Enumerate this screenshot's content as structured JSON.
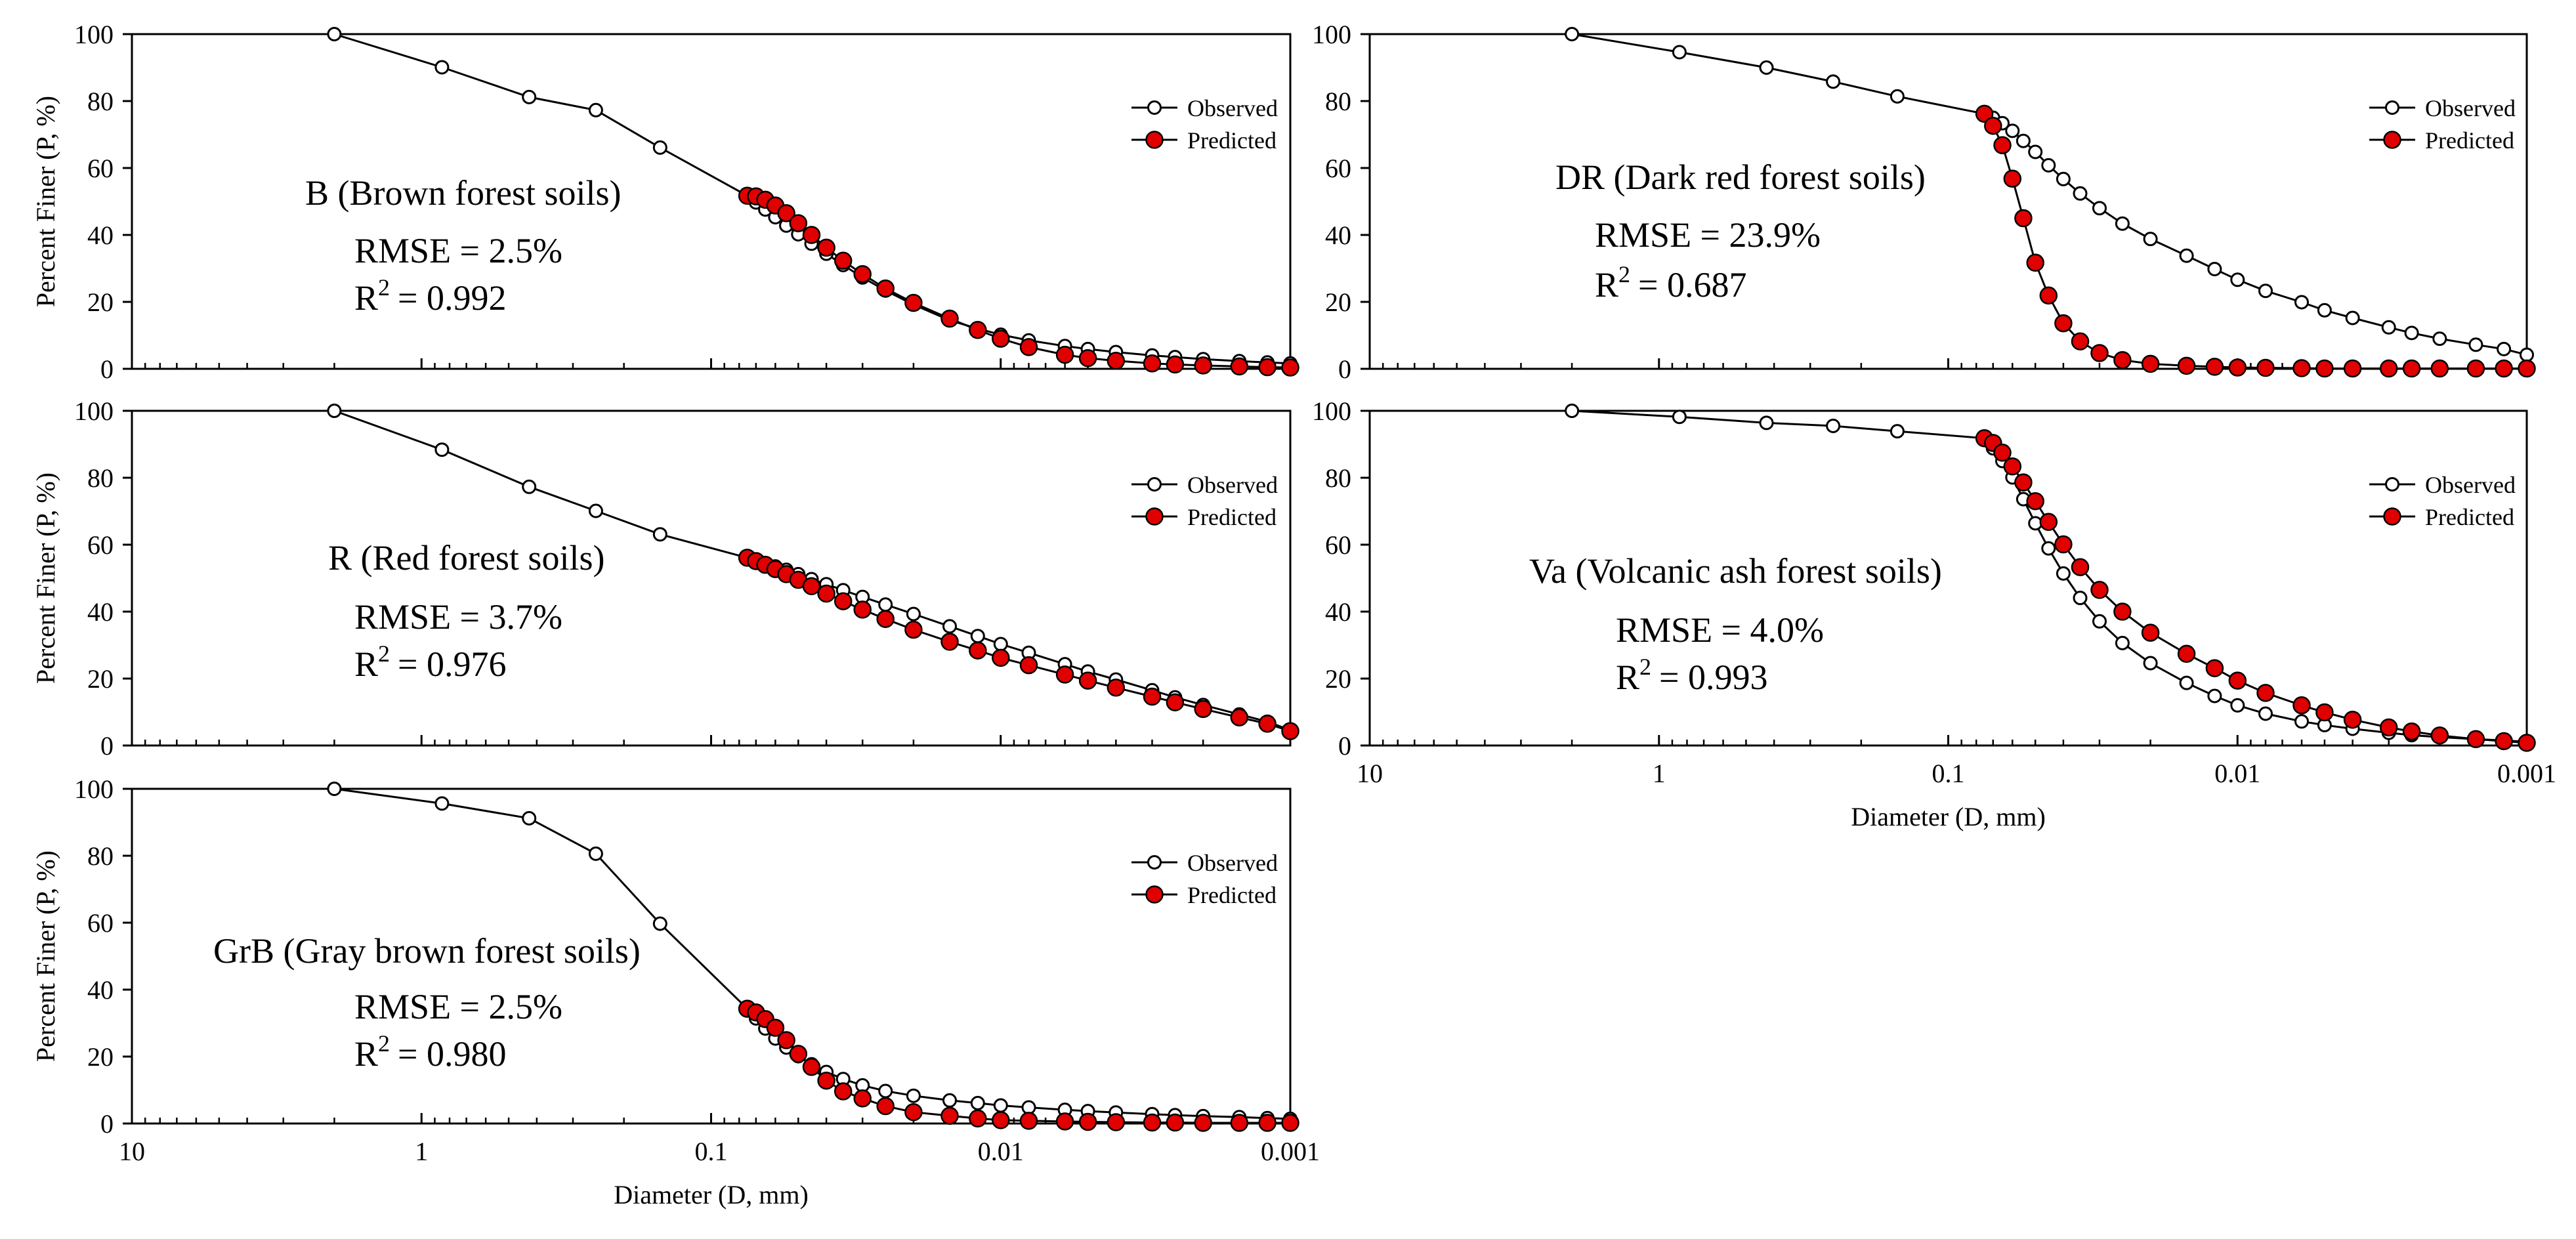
{
  "figure": {
    "ylabel": "Percent Finer (P, %)",
    "xlabel": "Diameter (D, mm)",
    "legend_observed": "Observed",
    "legend_predicted": "Predicted",
    "x_ticks": [
      "10",
      "1",
      "0.1",
      "0.01",
      "0.001"
    ],
    "y_ticks": [
      "0",
      "20",
      "40",
      "60",
      "80",
      "100"
    ]
  },
  "colors": {
    "observed_fill": "#ffffff",
    "predicted_fill": "#e00000",
    "line": "#000000",
    "axis": "#000000"
  },
  "chart_data": [
    {
      "type": "line",
      "panel": "B",
      "title": "B (Brown forest soils)",
      "rmse": "RMSE = 2.5%",
      "r2_label": "R",
      "r2_value": "= 0.992",
      "xlabel": "",
      "ylabel": "Percent Finer (P, %)",
      "x_scale": "log-reversed",
      "xlim": [
        10,
        0.001
      ],
      "ylim": [
        0,
        100
      ],
      "legend": "right",
      "series": [
        {
          "name": "Observed",
          "x": [
            2,
            0.85,
            0.425,
            0.25,
            0.15,
            0.075,
            0.07,
            0.065,
            0.06,
            0.055,
            0.05,
            0.045,
            0.04,
            0.035,
            0.03,
            0.025,
            0.02,
            0.015,
            0.012,
            0.01,
            0.008,
            0.006,
            0.005,
            0.004,
            0.003,
            0.0025,
            0.002,
            0.0015,
            0.0012,
            0.001
          ],
          "y": [
            100,
            90.1,
            81.2,
            77.3,
            66.1,
            51.7,
            49.7,
            47.6,
            45.3,
            42.8,
            40.2,
            37.4,
            34.4,
            31.0,
            27.3,
            23.4,
            19.2,
            14.5,
            12.0,
            10.2,
            8.5,
            6.8,
            5.9,
            5.0,
            4.0,
            3.5,
            2.9,
            2.3,
            1.9,
            1.6
          ]
        },
        {
          "name": "Predicted",
          "x": [
            0.075,
            0.07,
            0.065,
            0.06,
            0.055,
            0.05,
            0.045,
            0.04,
            0.035,
            0.03,
            0.025,
            0.02,
            0.015,
            0.012,
            0.01,
            0.008,
            0.006,
            0.005,
            0.004,
            0.003,
            0.0025,
            0.002,
            0.0015,
            0.0012,
            0.001
          ],
          "y": [
            51.7,
            51.5,
            50.5,
            48.8,
            46.5,
            43.5,
            40.0,
            36.2,
            32.3,
            28.3,
            24.0,
            19.7,
            15.0,
            11.6,
            9.0,
            6.5,
            4.2,
            3.2,
            2.4,
            1.6,
            1.3,
            1.0,
            0.7,
            0.5,
            0.4
          ]
        }
      ]
    },
    {
      "type": "line",
      "panel": "DR",
      "title": "DR (Dark red forest soils)",
      "rmse": "RMSE = 23.9%",
      "r2_label": "R",
      "r2_value": "= 0.687",
      "xlabel": "",
      "ylabel": "",
      "x_scale": "log-reversed",
      "xlim": [
        10,
        0.001
      ],
      "ylim": [
        0,
        100
      ],
      "legend": "right",
      "series": [
        {
          "name": "Observed",
          "x": [
            2,
            0.85,
            0.425,
            0.25,
            0.15,
            0.075,
            0.07,
            0.065,
            0.06,
            0.055,
            0.05,
            0.045,
            0.04,
            0.035,
            0.03,
            0.025,
            0.02,
            0.015,
            0.012,
            0.01,
            0.008,
            0.006,
            0.005,
            0.004,
            0.003,
            0.0025,
            0.002,
            0.0015,
            0.0012,
            0.001
          ],
          "y": [
            100,
            94.6,
            90.0,
            85.8,
            81.4,
            76.2,
            75.0,
            73.4,
            71.1,
            68.1,
            64.8,
            60.8,
            56.7,
            52.4,
            48.0,
            43.4,
            38.8,
            33.8,
            29.8,
            26.6,
            23.3,
            19.9,
            17.5,
            15.2,
            12.4,
            10.7,
            9.0,
            7.2,
            5.9,
            4.2
          ]
        },
        {
          "name": "Predicted",
          "x": [
            0.075,
            0.07,
            0.065,
            0.06,
            0.055,
            0.05,
            0.045,
            0.04,
            0.035,
            0.03,
            0.025,
            0.02,
            0.015,
            0.012,
            0.01,
            0.008,
            0.006,
            0.005,
            0.004,
            0.003,
            0.0025,
            0.002,
            0.0015,
            0.0012,
            0.001
          ],
          "y": [
            76.2,
            72.6,
            66.8,
            56.8,
            45.0,
            31.7,
            21.9,
            13.6,
            8.2,
            4.7,
            2.6,
            1.5,
            0.9,
            0.6,
            0.4,
            0.3,
            0.2,
            0.1,
            0.1,
            0.1,
            0.1,
            0.1,
            0.1,
            0.1,
            0.1
          ]
        }
      ]
    },
    {
      "type": "line",
      "panel": "R",
      "title": "R (Red forest soils)",
      "rmse": "RMSE = 3.7%",
      "r2_label": "R",
      "r2_value": "= 0.976",
      "xlabel": "",
      "ylabel": "Percent Finer (P, %)",
      "x_scale": "log-reversed",
      "xlim": [
        10,
        0.001
      ],
      "ylim": [
        0,
        100
      ],
      "legend": "right",
      "series": [
        {
          "name": "Observed",
          "x": [
            2,
            0.85,
            0.425,
            0.25,
            0.15,
            0.075,
            0.07,
            0.065,
            0.06,
            0.055,
            0.05,
            0.045,
            0.04,
            0.035,
            0.03,
            0.025,
            0.02,
            0.015,
            0.012,
            0.01,
            0.008,
            0.006,
            0.005,
            0.004,
            0.003,
            0.0025,
            0.002,
            0.0015,
            0.0012,
            0.001
          ],
          "y": [
            100,
            88.4,
            77.3,
            70.1,
            63.1,
            56.1,
            55.3,
            54.5,
            53.5,
            52.5,
            51.2,
            49.7,
            48.2,
            46.4,
            44.4,
            42.1,
            39.3,
            35.6,
            32.7,
            30.3,
            27.7,
            24.3,
            22.1,
            19.7,
            16.5,
            14.4,
            12.1,
            9.3,
            7.1,
            4.6
          ]
        },
        {
          "name": "Predicted",
          "x": [
            0.075,
            0.07,
            0.065,
            0.06,
            0.055,
            0.05,
            0.045,
            0.04,
            0.035,
            0.03,
            0.025,
            0.02,
            0.015,
            0.012,
            0.01,
            0.008,
            0.006,
            0.005,
            0.004,
            0.003,
            0.0025,
            0.002,
            0.0015,
            0.0012,
            0.001
          ],
          "y": [
            56.1,
            55.1,
            54.0,
            52.7,
            51.2,
            49.5,
            47.6,
            45.4,
            43.1,
            40.6,
            37.8,
            34.6,
            31.0,
            28.4,
            26.2,
            24.0,
            21.2,
            19.4,
            17.3,
            14.6,
            12.9,
            10.9,
            8.4,
            6.5,
            4.3
          ]
        }
      ]
    },
    {
      "type": "line",
      "panel": "Va",
      "title": "Va (Volcanic ash forest soils)",
      "rmse": "RMSE = 4.0%",
      "r2_label": "R",
      "r2_value": "= 0.993",
      "xlabel": "Diameter (D, mm)",
      "ylabel": "",
      "x_scale": "log-reversed",
      "xlim": [
        10,
        0.001
      ],
      "ylim": [
        0,
        100
      ],
      "legend": "right",
      "series": [
        {
          "name": "Observed",
          "x": [
            2,
            0.85,
            0.425,
            0.25,
            0.15,
            0.075,
            0.07,
            0.065,
            0.06,
            0.055,
            0.05,
            0.045,
            0.04,
            0.035,
            0.03,
            0.025,
            0.02,
            0.015,
            0.012,
            0.01,
            0.008,
            0.006,
            0.005,
            0.004,
            0.003,
            0.0025,
            0.002,
            0.0015,
            0.0012,
            0.001
          ],
          "y": [
            100,
            98.2,
            96.4,
            95.5,
            93.9,
            91.8,
            88.8,
            85.0,
            80.1,
            73.6,
            66.4,
            58.9,
            51.4,
            44.1,
            37.1,
            30.6,
            24.6,
            18.7,
            14.8,
            12.0,
            9.5,
            7.2,
            6.1,
            5.0,
            3.8,
            3.1,
            2.5,
            1.9,
            1.5,
            1.1
          ]
        },
        {
          "name": "Predicted",
          "x": [
            0.075,
            0.07,
            0.065,
            0.06,
            0.055,
            0.05,
            0.045,
            0.04,
            0.035,
            0.03,
            0.025,
            0.02,
            0.015,
            0.012,
            0.01,
            0.008,
            0.006,
            0.005,
            0.004,
            0.003,
            0.0025,
            0.002,
            0.0015,
            0.0012,
            0.001
          ],
          "y": [
            91.8,
            90.4,
            87.5,
            83.4,
            78.6,
            73.0,
            66.8,
            60.1,
            53.3,
            46.5,
            40.0,
            33.7,
            27.4,
            23.1,
            19.4,
            15.7,
            12.0,
            9.9,
            7.7,
            5.4,
            4.2,
            3.0,
            1.9,
            1.3,
            0.8
          ]
        }
      ]
    },
    {
      "type": "line",
      "panel": "GrB",
      "title": "GrB (Gray brown forest soils)",
      "rmse": "RMSE = 2.5%",
      "r2_label": "R",
      "r2_value": "= 0.980",
      "xlabel": "Diameter (D, mm)",
      "ylabel": "Percent Finer (P, %)",
      "x_scale": "log-reversed",
      "xlim": [
        10,
        0.001
      ],
      "ylim": [
        0,
        100
      ],
      "legend": "right",
      "series": [
        {
          "name": "Observed",
          "x": [
            2,
            0.85,
            0.425,
            0.25,
            0.15,
            0.075,
            0.07,
            0.065,
            0.06,
            0.055,
            0.05,
            0.045,
            0.04,
            0.035,
            0.03,
            0.025,
            0.02,
            0.015,
            0.012,
            0.01,
            0.008,
            0.006,
            0.005,
            0.004,
            0.003,
            0.0025,
            0.002,
            0.0015,
            0.0012,
            0.001
          ],
          "y": [
            100,
            95.6,
            91.2,
            80.6,
            59.7,
            34.3,
            31.4,
            28.4,
            25.4,
            22.7,
            20.1,
            17.7,
            15.4,
            13.3,
            11.4,
            9.7,
            8.3,
            6.9,
            6.1,
            5.4,
            4.8,
            4.1,
            3.7,
            3.3,
            2.8,
            2.5,
            2.2,
            1.9,
            1.6,
            1.4
          ]
        },
        {
          "name": "Predicted",
          "x": [
            0.075,
            0.07,
            0.065,
            0.06,
            0.055,
            0.05,
            0.045,
            0.04,
            0.035,
            0.03,
            0.025,
            0.02,
            0.015,
            0.012,
            0.01,
            0.008,
            0.006,
            0.005,
            0.004,
            0.003,
            0.0025,
            0.002,
            0.0015,
            0.0012,
            0.001
          ],
          "y": [
            34.3,
            33.2,
            31.2,
            28.6,
            24.9,
            20.8,
            16.9,
            12.8,
            9.6,
            7.5,
            5.2,
            3.4,
            2.3,
            1.5,
            1.0,
            0.8,
            0.6,
            0.5,
            0.4,
            0.3,
            0.3,
            0.2,
            0.2,
            0.2,
            0.2
          ]
        }
      ]
    }
  ]
}
